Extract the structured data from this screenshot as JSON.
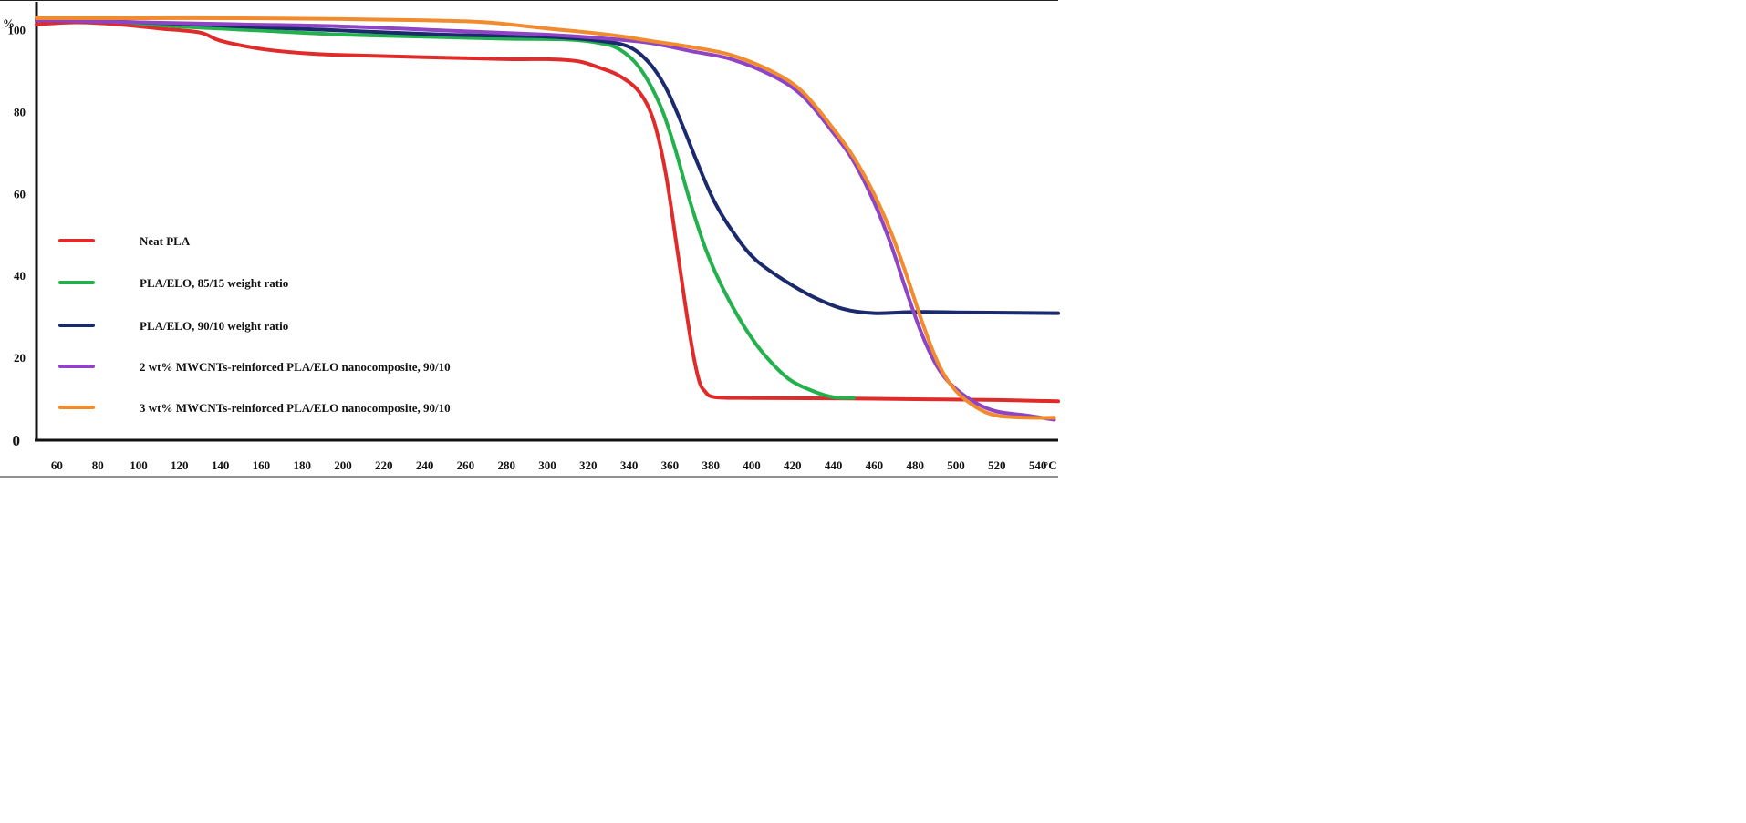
{
  "chart_data": {
    "type": "line",
    "title": "",
    "xlabel": "°C",
    "ylabel": "%",
    "xlim": [
      50,
      550
    ],
    "ylim": [
      0,
      107
    ],
    "x_ticks": [
      60,
      80,
      100,
      120,
      140,
      160,
      180,
      200,
      220,
      240,
      260,
      280,
      300,
      320,
      340,
      360,
      380,
      400,
      420,
      440,
      460,
      480,
      500,
      520,
      540
    ],
    "x_tick_labels": [
      "60",
      "80",
      "100",
      "120",
      "140",
      "160",
      "180",
      "200",
      "220",
      "240",
      "260",
      "280",
      "300",
      "320",
      "340",
      "360",
      "380",
      "400",
      "420",
      "440",
      "460",
      "480",
      "500",
      "520",
      "540"
    ],
    "y_ticks": [
      0,
      20,
      40,
      60,
      80,
      100
    ],
    "y_tick_labels": [
      "0",
      "20",
      "40",
      "60",
      "80",
      "100"
    ],
    "legend_position": "left",
    "grid": false,
    "series": [
      {
        "name": "Neat PLA",
        "color": "#e02b2b",
        "points": [
          [
            50,
            101.5
          ],
          [
            70,
            102
          ],
          [
            90,
            101.5
          ],
          [
            110,
            100.5
          ],
          [
            130,
            99.5
          ],
          [
            140,
            97.5
          ],
          [
            160,
            95.5
          ],
          [
            180,
            94.5
          ],
          [
            200,
            94
          ],
          [
            240,
            93.5
          ],
          [
            280,
            93
          ],
          [
            300,
            93
          ],
          [
            315,
            92.5
          ],
          [
            325,
            91
          ],
          [
            335,
            89
          ],
          [
            345,
            85
          ],
          [
            352,
            78
          ],
          [
            358,
            65
          ],
          [
            364,
            45
          ],
          [
            370,
            25
          ],
          [
            374,
            15
          ],
          [
            377,
            12
          ],
          [
            382,
            10.5
          ],
          [
            400,
            10.3
          ],
          [
            440,
            10.2
          ],
          [
            480,
            10
          ],
          [
            520,
            9.8
          ],
          [
            550,
            9.5
          ]
        ]
      },
      {
        "name": "PLA/ELO, 85/15 weight ratio",
        "color": "#22b14c",
        "points": [
          [
            50,
            103
          ],
          [
            80,
            102.5
          ],
          [
            120,
            101
          ],
          [
            160,
            100
          ],
          [
            200,
            99
          ],
          [
            240,
            98.5
          ],
          [
            280,
            98
          ],
          [
            310,
            97.8
          ],
          [
            325,
            97
          ],
          [
            335,
            95.5
          ],
          [
            345,
            91
          ],
          [
            355,
            82
          ],
          [
            362,
            72
          ],
          [
            370,
            58
          ],
          [
            378,
            46
          ],
          [
            386,
            37
          ],
          [
            396,
            28
          ],
          [
            406,
            21
          ],
          [
            418,
            15
          ],
          [
            430,
            12
          ],
          [
            440,
            10.5
          ],
          [
            450,
            10.3
          ]
        ]
      },
      {
        "name": "PLA/ELO, 90/10 weight ratio",
        "color": "#1a2a6c",
        "points": [
          [
            50,
            102.5
          ],
          [
            100,
            102
          ],
          [
            150,
            101
          ],
          [
            200,
            100
          ],
          [
            250,
            99
          ],
          [
            300,
            98.5
          ],
          [
            325,
            97.5
          ],
          [
            340,
            96
          ],
          [
            350,
            92
          ],
          [
            358,
            86
          ],
          [
            366,
            77
          ],
          [
            374,
            67
          ],
          [
            382,
            58
          ],
          [
            392,
            50
          ],
          [
            402,
            44
          ],
          [
            416,
            39
          ],
          [
            430,
            35
          ],
          [
            445,
            32
          ],
          [
            460,
            31
          ],
          [
            480,
            31.3
          ],
          [
            500,
            31.2
          ],
          [
            550,
            31
          ]
        ]
      },
      {
        "name": "2 wt% MWCNTs-reinforced PLA/ELO nanocomposite, 90/10",
        "color": "#8e44c4",
        "points": [
          [
            50,
            102.5
          ],
          [
            100,
            102
          ],
          [
            150,
            101.5
          ],
          [
            200,
            101
          ],
          [
            250,
            100
          ],
          [
            300,
            99
          ],
          [
            330,
            98
          ],
          [
            350,
            97
          ],
          [
            370,
            95
          ],
          [
            390,
            93
          ],
          [
            410,
            89
          ],
          [
            425,
            84
          ],
          [
            440,
            75
          ],
          [
            450,
            68
          ],
          [
            460,
            58
          ],
          [
            468,
            48
          ],
          [
            476,
            36
          ],
          [
            484,
            25
          ],
          [
            492,
            17
          ],
          [
            500,
            12.5
          ],
          [
            510,
            9
          ],
          [
            520,
            7
          ],
          [
            535,
            6
          ],
          [
            548,
            5
          ]
        ]
      },
      {
        "name": "3 wt% MWCNTs-reinforced PLA/ELO nanocomposite, 90/10",
        "color": "#f28a2e",
        "points": [
          [
            50,
            103
          ],
          [
            100,
            103
          ],
          [
            150,
            103
          ],
          [
            200,
            102.8
          ],
          [
            240,
            102.5
          ],
          [
            270,
            102
          ],
          [
            300,
            100.5
          ],
          [
            330,
            99
          ],
          [
            350,
            97.5
          ],
          [
            370,
            96
          ],
          [
            390,
            94
          ],
          [
            410,
            90
          ],
          [
            425,
            85
          ],
          [
            440,
            76
          ],
          [
            450,
            69
          ],
          [
            460,
            60
          ],
          [
            468,
            51
          ],
          [
            476,
            40
          ],
          [
            484,
            28
          ],
          [
            492,
            18
          ],
          [
            500,
            12
          ],
          [
            510,
            8
          ],
          [
            520,
            6
          ],
          [
            535,
            5.5
          ],
          [
            548,
            5.5
          ]
        ]
      }
    ]
  }
}
